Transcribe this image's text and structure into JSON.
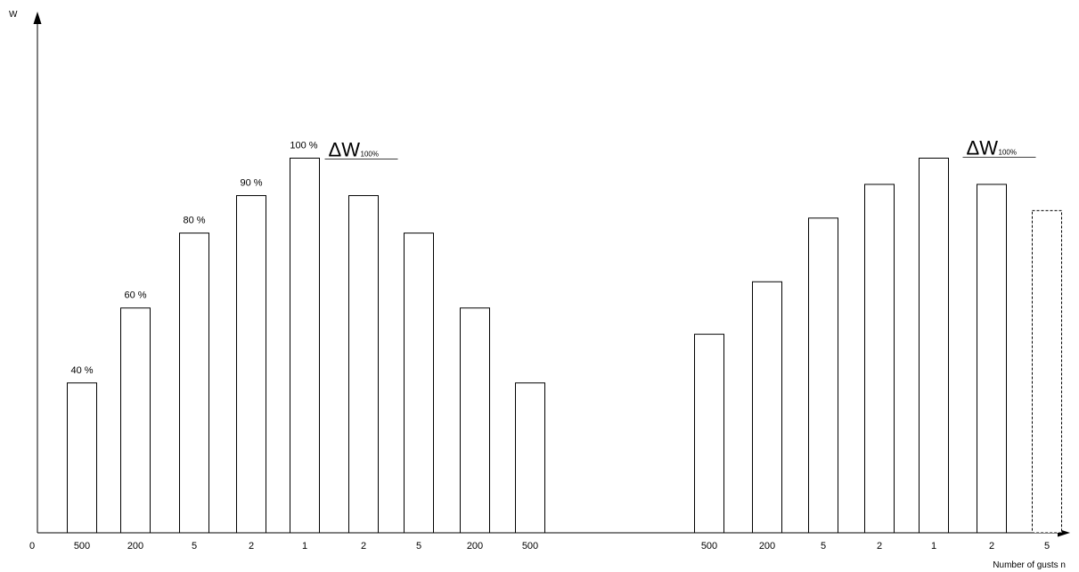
{
  "chart_data": {
    "type": "bar",
    "y_axis_label": "W",
    "x_axis_label": "Number of gusts n",
    "origin_label": "0",
    "groups": [
      {
        "categories": [
          "500",
          "200",
          "5",
          "2",
          "1",
          "2",
          "5",
          "200",
          "500"
        ],
        "values": [
          40,
          60,
          80,
          90,
          100,
          90,
          80,
          60,
          40
        ],
        "value_labels": [
          "40 %",
          "60 %",
          "80 %",
          "90 %",
          "100 %",
          "",
          "",
          "",
          ""
        ],
        "delta_label": {
          "main": "ΔW",
          "sub": "100%"
        }
      },
      {
        "categories": [
          "500",
          "200",
          "5",
          "2",
          "1",
          "2",
          "5"
        ],
        "values": [
          53,
          67,
          84,
          93,
          100,
          93,
          86
        ],
        "value_labels": [
          "",
          "",
          "",
          "",
          "",
          "",
          ""
        ],
        "last_bar_dashed": true,
        "delta_label": {
          "main": "ΔW",
          "sub": "100%"
        }
      }
    ]
  }
}
